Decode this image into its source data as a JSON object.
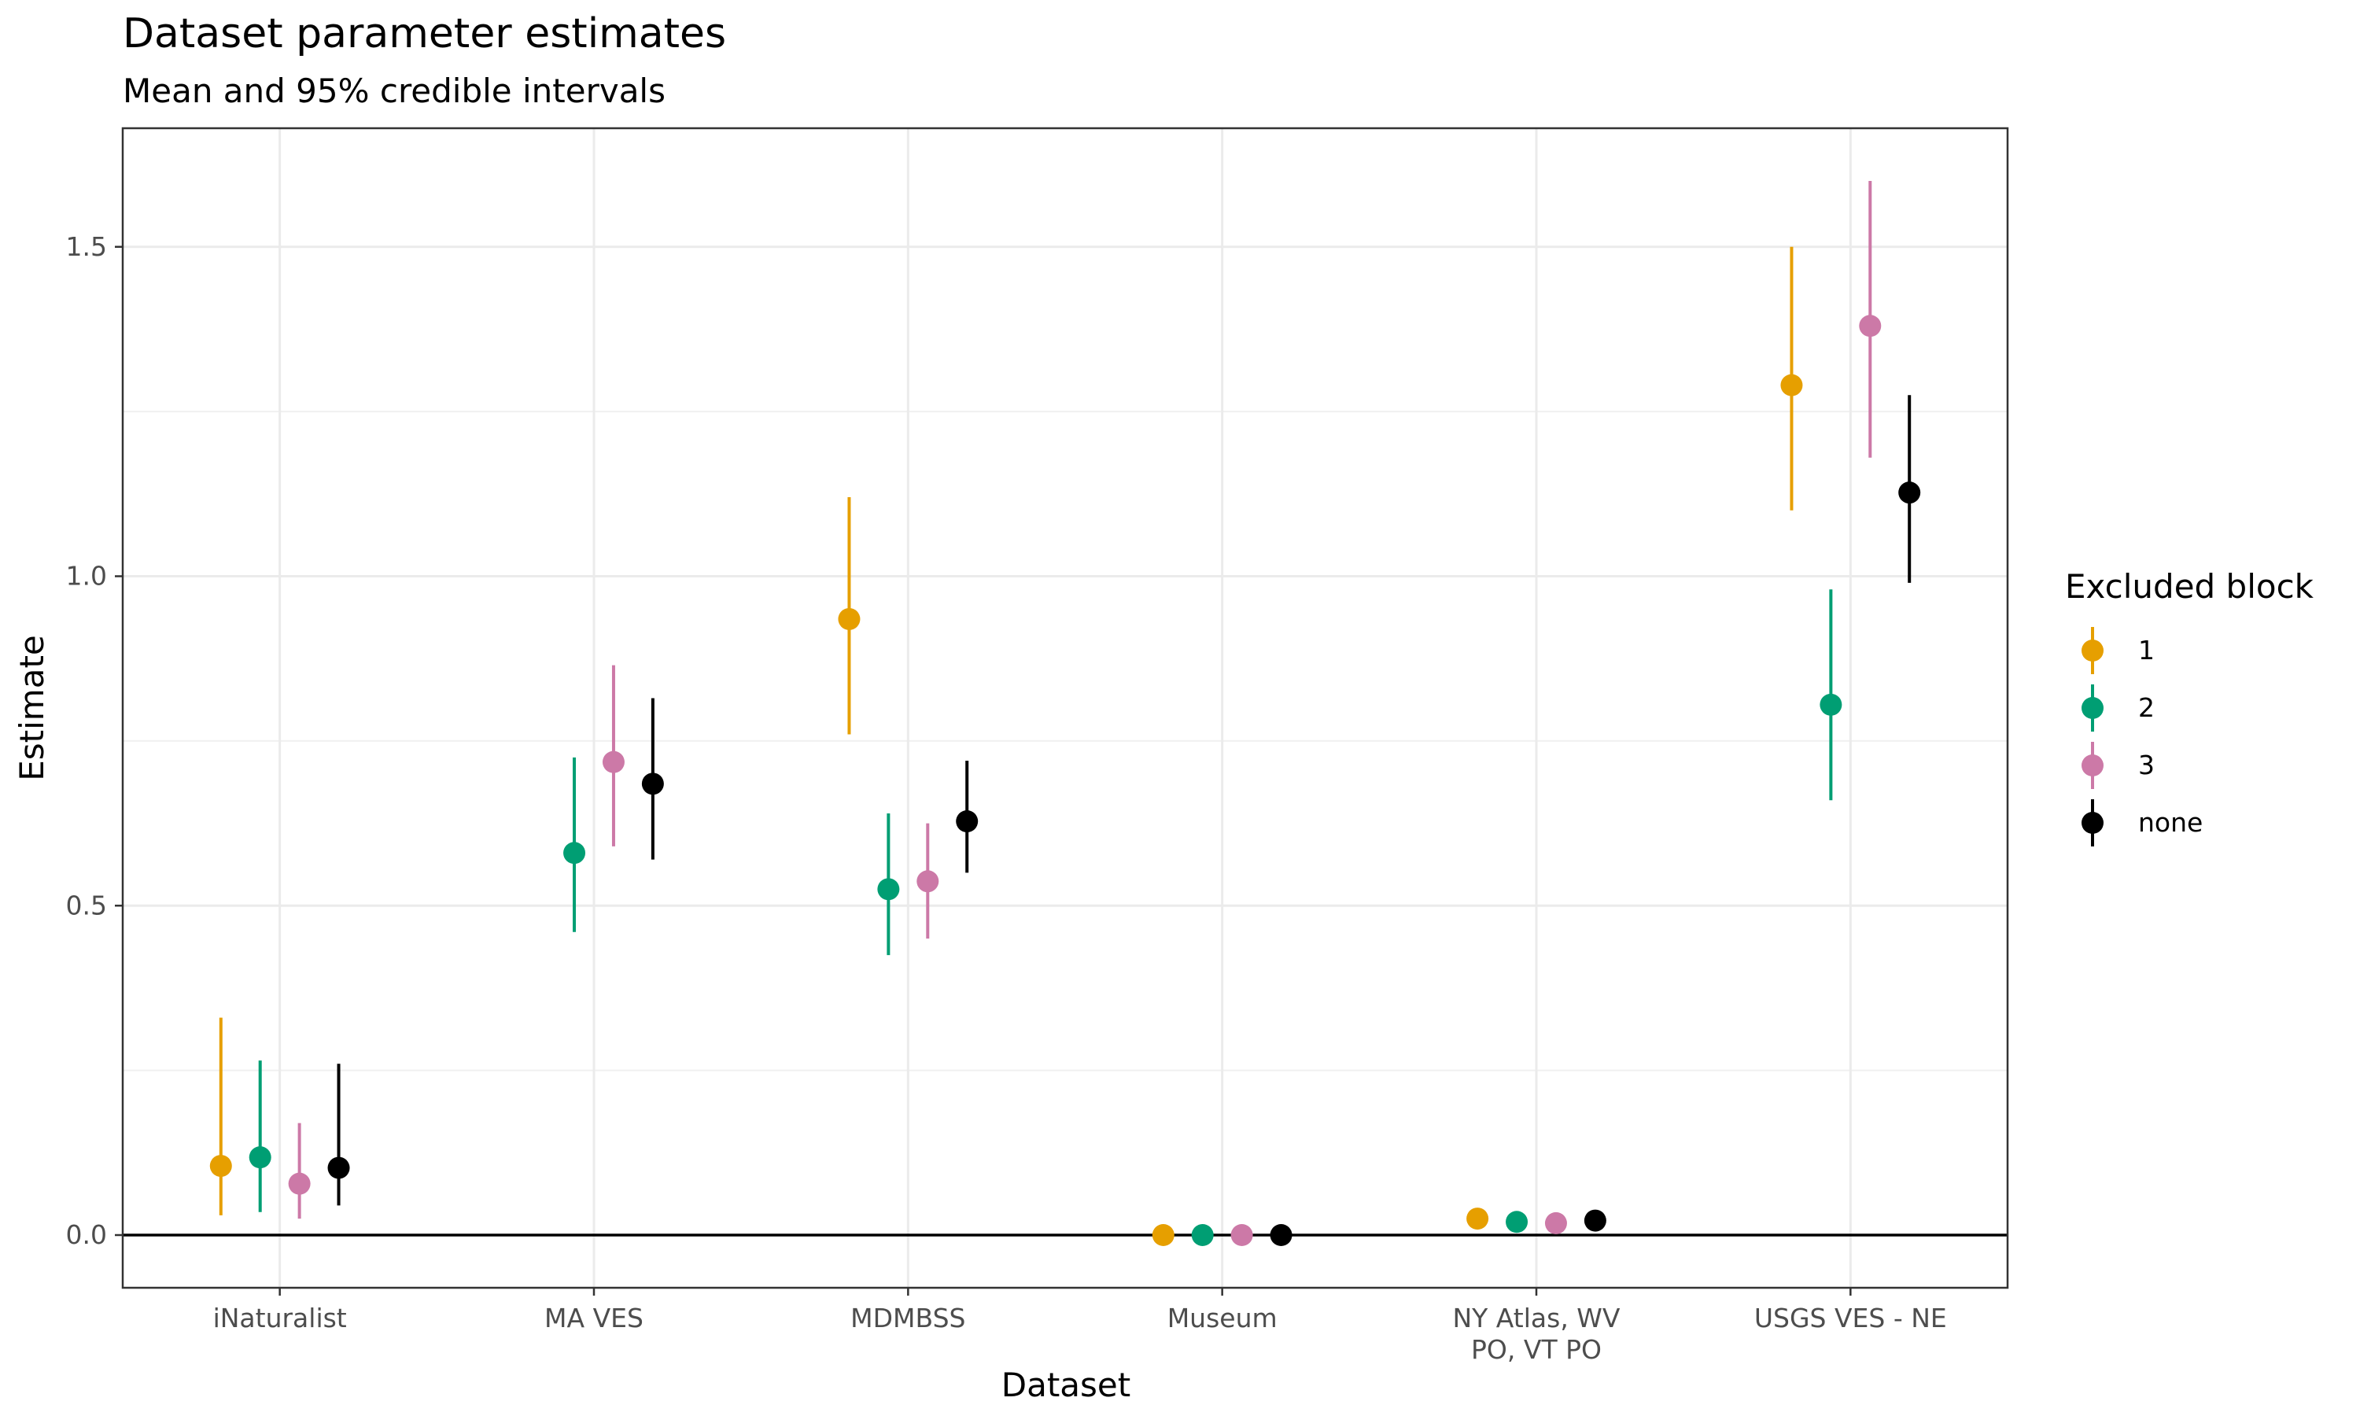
{
  "chart_data": {
    "type": "scatter",
    "title": "Dataset parameter estimates",
    "subtitle": "Mean and 95% credible intervals",
    "xlabel": "Dataset",
    "ylabel": "Estimate",
    "categories": [
      "iNaturalist",
      "MA VES",
      "MDMBSS",
      "Museum",
      "NY Atlas, WV\nPO, VT PO",
      "USGS VES - NE"
    ],
    "ylim": [
      -0.08,
      1.68
    ],
    "yticks": [
      "0.0",
      "0.5",
      "1.0",
      "1.5"
    ],
    "ytick_values": [
      0.0,
      0.5,
      1.0,
      1.5
    ],
    "hline": 0,
    "grid": true,
    "legend": {
      "title": "Excluded block",
      "position": "right"
    },
    "series": [
      {
        "name": "1",
        "color": "#E69F00",
        "mean": [
          0.105,
          null,
          0.935,
          0.0,
          0.025,
          1.29
        ],
        "lower": [
          0.03,
          null,
          0.76,
          null,
          null,
          1.1
        ],
        "upper": [
          0.33,
          null,
          1.12,
          null,
          null,
          1.5
        ]
      },
      {
        "name": "2",
        "color": "#009E73",
        "mean": [
          0.118,
          0.58,
          0.525,
          0.0,
          0.02,
          0.805
        ],
        "lower": [
          0.035,
          0.46,
          0.425,
          null,
          null,
          0.66
        ],
        "upper": [
          0.265,
          0.725,
          0.64,
          null,
          null,
          0.98
        ]
      },
      {
        "name": "3",
        "color": "#CC79A7",
        "mean": [
          0.078,
          0.718,
          0.537,
          0.0,
          0.018,
          1.38
        ],
        "lower": [
          0.025,
          0.59,
          0.45,
          null,
          null,
          1.18
        ],
        "upper": [
          0.17,
          0.865,
          0.625,
          null,
          null,
          1.6
        ]
      },
      {
        "name": "none",
        "color": "#000000",
        "mean": [
          0.102,
          0.685,
          0.628,
          0.0,
          0.022,
          1.127
        ],
        "lower": [
          0.045,
          0.57,
          0.55,
          null,
          null,
          0.99
        ],
        "upper": [
          0.26,
          0.815,
          0.72,
          null,
          null,
          1.275
        ]
      }
    ]
  }
}
